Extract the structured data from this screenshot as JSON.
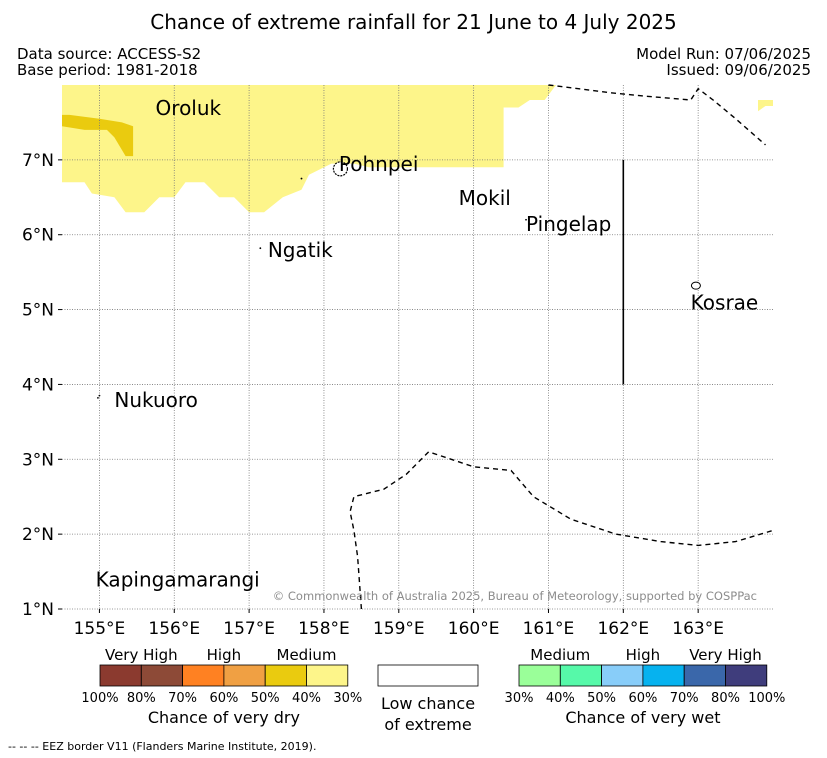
{
  "title": "Chance of extreme rainfall for 21 June to 4 July 2025",
  "data_source": "Data source: ACCESS-S2",
  "base_period": "Base period: 1981-2018",
  "model_run": "Model Run: 07/06/2025",
  "issued": "Issued: 09/06/2025",
  "copyright": "© Commonwealth of Australia 2025, Bureau of Meteorology, supported by COSPPac",
  "footnote": "--  --  -- EEZ border V11 (Flanders Marine Institute, 2019).",
  "map": {
    "lon_range": [
      154.5,
      164.0
    ],
    "lat_range": [
      1.0,
      8.0
    ],
    "lon_ticks": [
      {
        "value": 155,
        "label": "155°E"
      },
      {
        "value": 156,
        "label": "156°E"
      },
      {
        "value": 157,
        "label": "157°E"
      },
      {
        "value": 158,
        "label": "158°E"
      },
      {
        "value": 159,
        "label": "159°E"
      },
      {
        "value": 160,
        "label": "160°E"
      },
      {
        "value": 161,
        "label": "161°E"
      },
      {
        "value": 162,
        "label": "162°E"
      },
      {
        "value": 163,
        "label": "163°E"
      }
    ],
    "lat_ticks": [
      {
        "value": 1,
        "label": "1°N"
      },
      {
        "value": 2,
        "label": "2°N"
      },
      {
        "value": 3,
        "label": "3°N"
      },
      {
        "value": 4,
        "label": "4°N"
      },
      {
        "value": 5,
        "label": "5°N"
      },
      {
        "value": 6,
        "label": "6°N"
      },
      {
        "value": 7,
        "label": "7°N"
      }
    ],
    "grid": true,
    "places": [
      {
        "name": "Oroluk",
        "lon": 155.75,
        "lat": 7.6
      },
      {
        "name": "Pohnpei",
        "lon": 158.2,
        "lat": 6.85
      },
      {
        "name": "Mokil",
        "lon": 159.8,
        "lat": 6.4
      },
      {
        "name": "Pingelap",
        "lon": 160.7,
        "lat": 6.05
      },
      {
        "name": "Ngatik",
        "lon": 157.25,
        "lat": 5.7
      },
      {
        "name": "Kosrae",
        "lon": 162.9,
        "lat": 5.0
      },
      {
        "name": "Nukuoro",
        "lon": 155.2,
        "lat": 3.7
      },
      {
        "name": "Kapingamarangi",
        "lon": 154.95,
        "lat": 1.3
      }
    ],
    "medium_dry_region": [
      [
        154.5,
        8.0
      ],
      [
        164.0,
        8.0
      ],
      [
        164.0,
        7.8
      ],
      [
        163.8,
        7.8
      ],
      [
        163.8,
        7.65
      ],
      [
        163.9,
        7.72
      ],
      [
        164.0,
        7.72
      ],
      [
        164.0,
        8.0
      ],
      [
        161.1,
        8.0
      ],
      [
        160.95,
        7.8
      ],
      [
        160.75,
        7.8
      ],
      [
        160.6,
        7.7
      ],
      [
        160.4,
        7.7
      ],
      [
        160.4,
        7.5
      ],
      [
        160.4,
        6.9
      ],
      [
        158.6,
        6.9
      ],
      [
        158.4,
        6.95
      ],
      [
        158.1,
        6.95
      ],
      [
        157.8,
        6.8
      ],
      [
        157.7,
        6.6
      ],
      [
        157.45,
        6.5
      ],
      [
        157.2,
        6.3
      ],
      [
        157.0,
        6.3
      ],
      [
        156.8,
        6.5
      ],
      [
        156.6,
        6.5
      ],
      [
        156.4,
        6.7
      ],
      [
        156.15,
        6.7
      ],
      [
        156.0,
        6.5
      ],
      [
        155.8,
        6.5
      ],
      [
        155.6,
        6.3
      ],
      [
        155.35,
        6.3
      ],
      [
        155.2,
        6.5
      ],
      [
        154.9,
        6.55
      ],
      [
        154.8,
        6.7
      ],
      [
        154.5,
        6.7
      ]
    ],
    "high_dry_region": [
      [
        154.5,
        7.6
      ],
      [
        154.6,
        7.6
      ],
      [
        155.0,
        7.55
      ],
      [
        155.3,
        7.5
      ],
      [
        155.45,
        7.45
      ],
      [
        155.45,
        7.05
      ],
      [
        155.35,
        7.05
      ],
      [
        155.2,
        7.3
      ],
      [
        155.1,
        7.4
      ],
      [
        154.8,
        7.4
      ],
      [
        154.5,
        7.45
      ]
    ],
    "pingelap_line": {
      "lon": 162.0,
      "lat_from": 7.0,
      "lat_to": 4.0
    },
    "eez_segments": [
      [
        [
          161.0,
          8.0
        ],
        [
          161.4,
          7.95
        ],
        [
          161.8,
          7.9
        ],
        [
          162.3,
          7.85
        ],
        [
          162.9,
          7.8
        ],
        [
          163.0,
          7.95
        ],
        [
          163.2,
          7.8
        ],
        [
          163.5,
          7.55
        ],
        [
          163.9,
          7.2
        ]
      ],
      [
        [
          158.5,
          1.0
        ],
        [
          158.45,
          1.7
        ],
        [
          158.4,
          2.05
        ],
        [
          158.35,
          2.3
        ],
        [
          158.4,
          2.5
        ],
        [
          158.8,
          2.6
        ],
        [
          159.1,
          2.8
        ],
        [
          159.4,
          3.1
        ],
        [
          159.7,
          3.0
        ],
        [
          160.0,
          2.9
        ],
        [
          160.5,
          2.85
        ],
        [
          160.8,
          2.5
        ],
        [
          161.3,
          2.2
        ],
        [
          161.9,
          2.0
        ],
        [
          162.5,
          1.9
        ],
        [
          163.0,
          1.85
        ],
        [
          163.5,
          1.9
        ],
        [
          164.0,
          2.05
        ]
      ]
    ]
  },
  "legend": {
    "dry": {
      "groups": [
        "Very High",
        "High",
        "Medium"
      ],
      "colors": [
        "#8b3a2f",
        "#8d4a37",
        "#ff8122",
        "#f0a043",
        "#eacb0f",
        "#fdf58a"
      ],
      "ticks": [
        "100%",
        "80%",
        "70%",
        "60%",
        "50%",
        "40%",
        "30%"
      ],
      "caption": "Chance of very dry"
    },
    "low": {
      "line1": "Low chance",
      "line2": "of extreme"
    },
    "wet": {
      "groups": [
        "Medium",
        "High",
        "Very High"
      ],
      "colors": [
        "#9aff99",
        "#56f9a9",
        "#88cdf9",
        "#06b2ef",
        "#3a67aa",
        "#3f3d7c"
      ],
      "ticks": [
        "30%",
        "40%",
        "50%",
        "60%",
        "70%",
        "80%",
        "100%"
      ],
      "caption": "Chance of very wet"
    }
  }
}
